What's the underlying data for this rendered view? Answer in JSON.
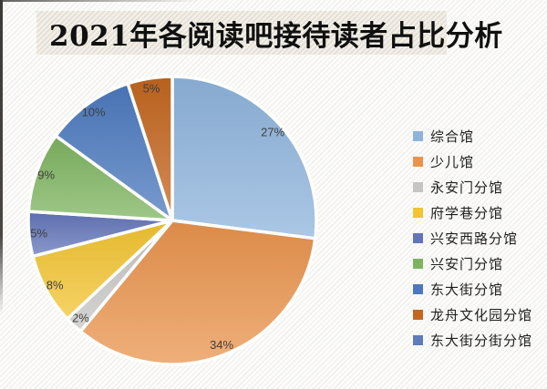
{
  "chart_data": {
    "type": "pie",
    "title": "2021年各阅读吧接待读者占比分析",
    "legend_position": "right",
    "label_format": "percent",
    "labels_shown_on_slices": [
      "27%",
      "34%",
      "2%",
      "8%",
      "5%",
      "9%",
      "10%",
      "5%"
    ],
    "series": [
      {
        "label": "综合馆",
        "value": 27,
        "color": "#8FB4DC"
      },
      {
        "label": "少儿馆",
        "value": 34,
        "color": "#E9944D"
      },
      {
        "label": "永安门分馆",
        "value": 2,
        "color": "#C6C5C3"
      },
      {
        "label": "府学巷分馆",
        "value": 8,
        "color": "#F3C431"
      },
      {
        "label": "兴安西路分馆",
        "value": 5,
        "color": "#6375B9"
      },
      {
        "label": "兴安门分馆",
        "value": 9,
        "color": "#7DB460"
      },
      {
        "label": "东大街分馆",
        "value": 10,
        "color": "#4C79BE"
      },
      {
        "label": "龙舟文化园分馆",
        "value": 5,
        "color": "#C4661F"
      },
      {
        "label": "东大街分街分馆",
        "value": 0,
        "color": "#5E7BBB"
      }
    ]
  }
}
